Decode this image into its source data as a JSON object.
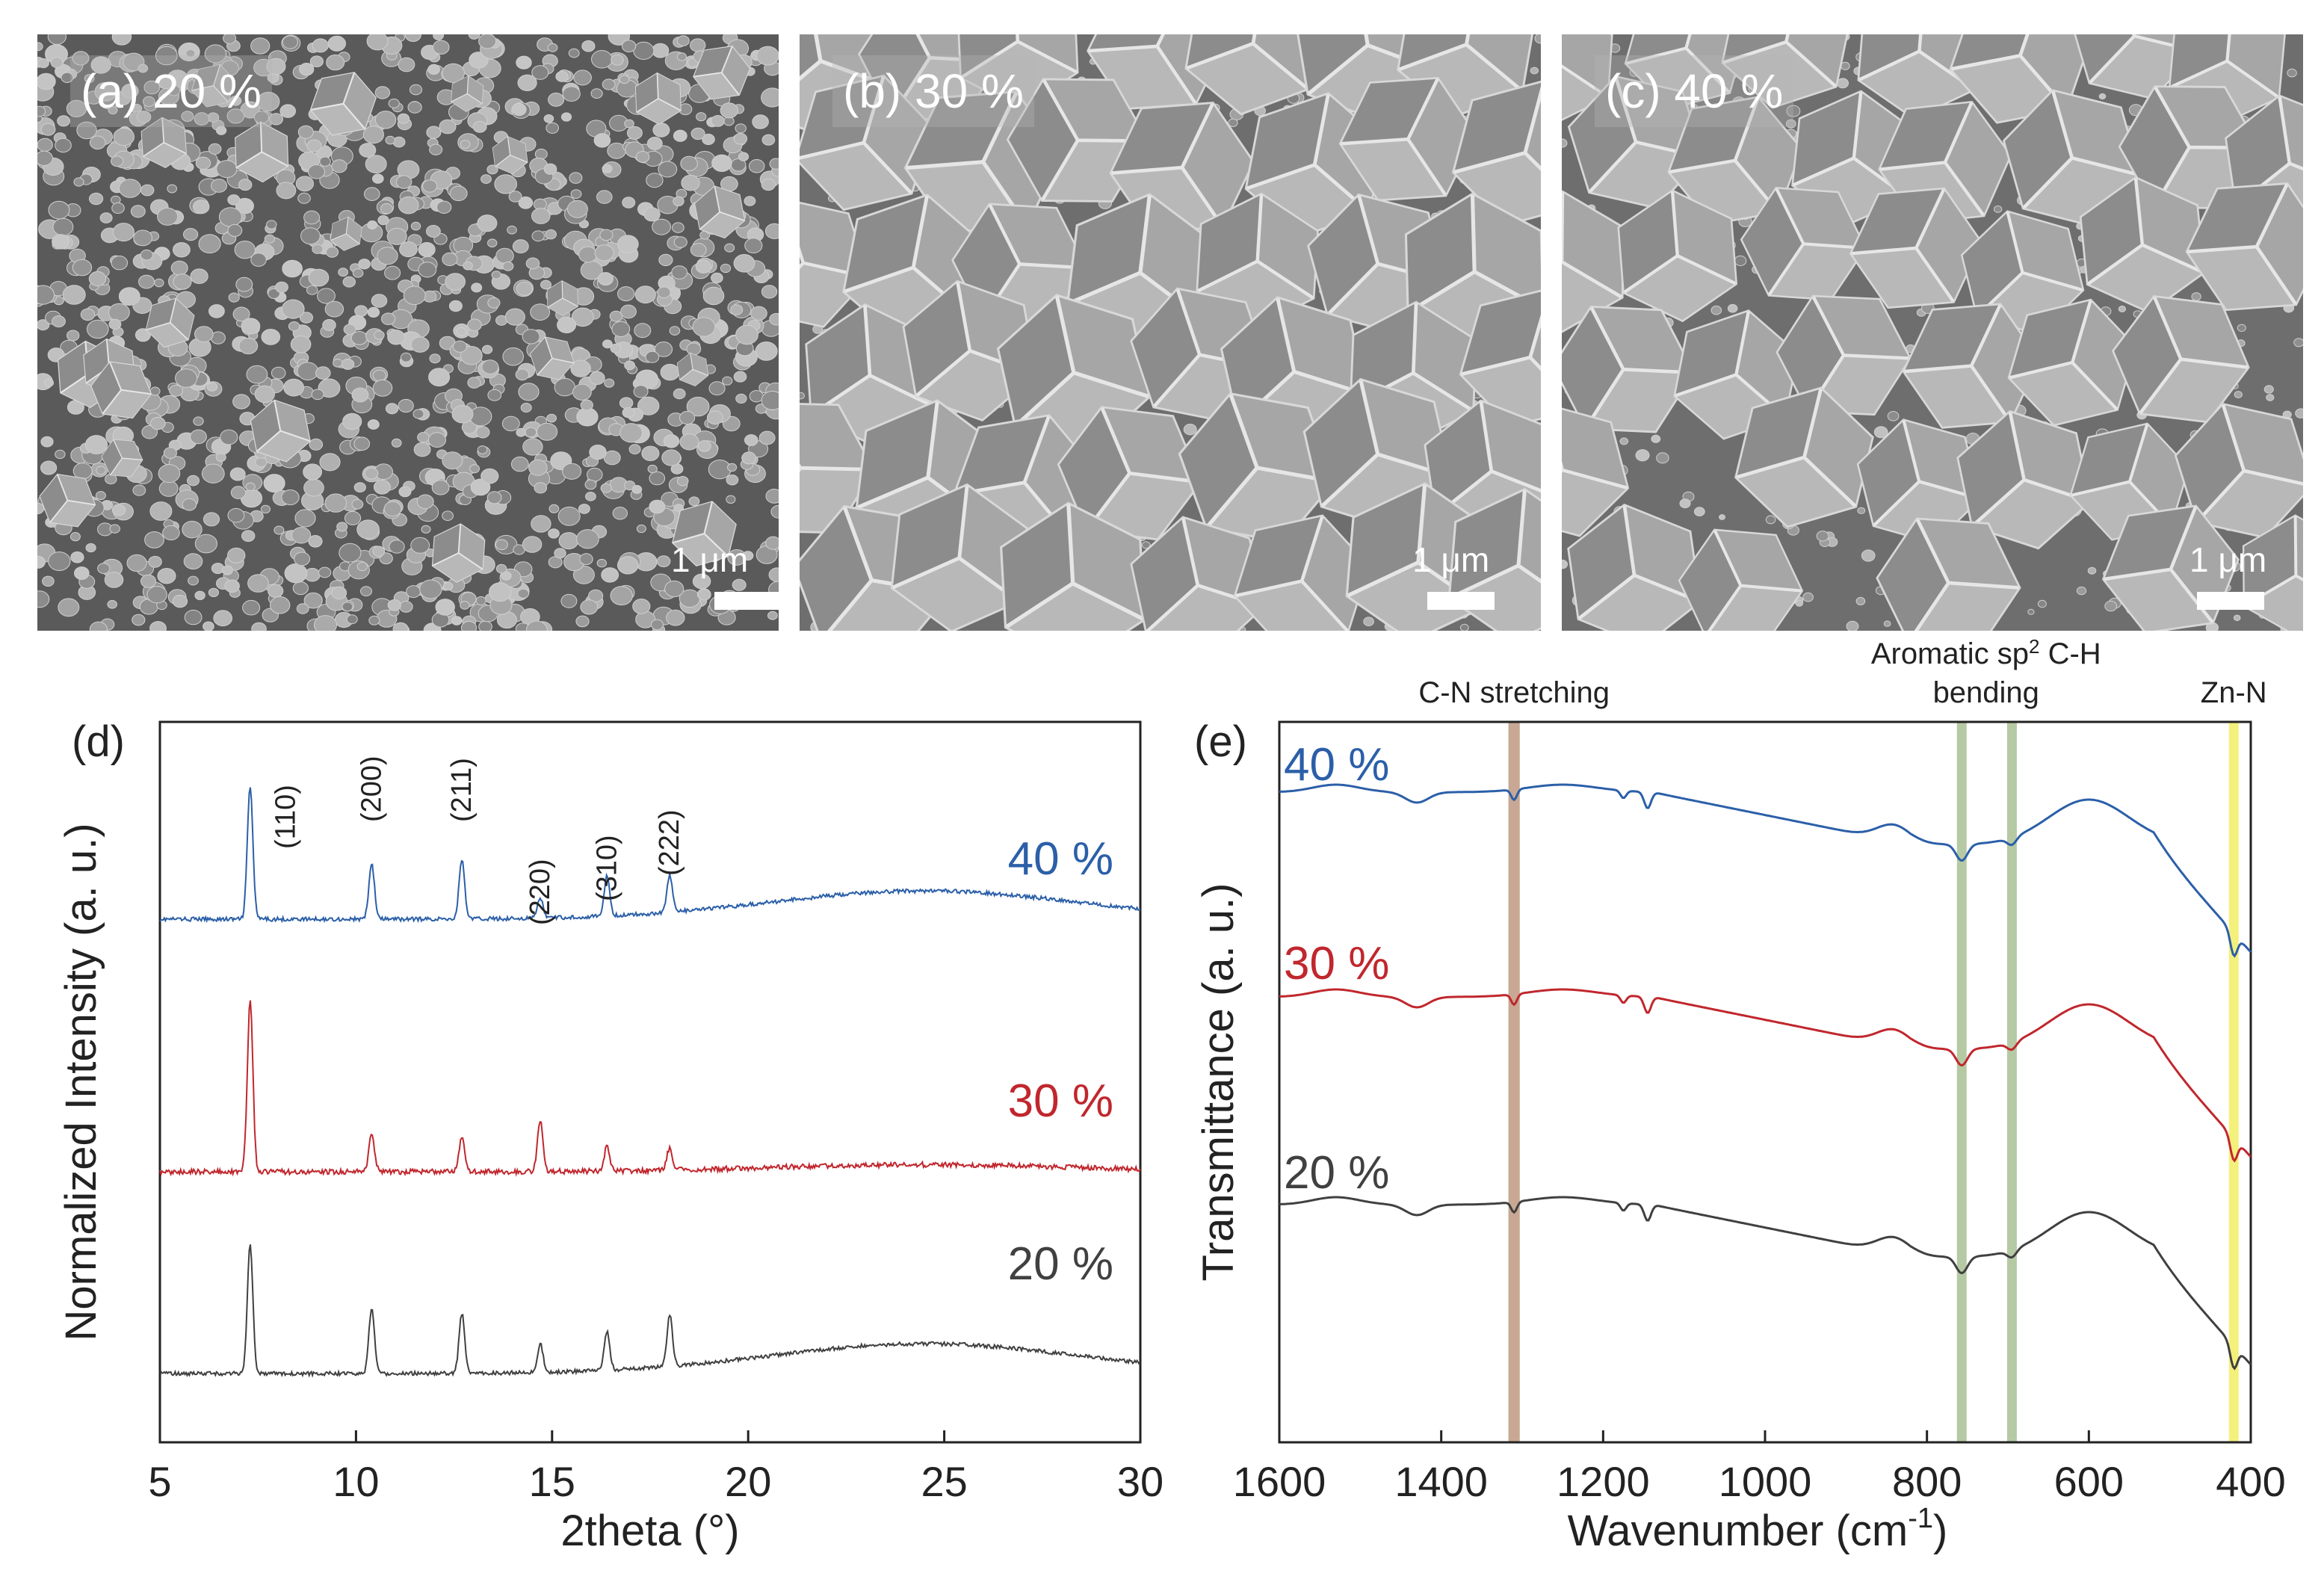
{
  "sem_panels": [
    {
      "label": "(a) 20 %",
      "scale": "1 μm",
      "density": "small"
    },
    {
      "label": "(b) 30 %",
      "scale": "1 μm",
      "density": "large"
    },
    {
      "label": "(c) 40 %",
      "scale": "1 μm",
      "density": "mixed"
    }
  ],
  "chart_data": [
    {
      "panel": "(d)",
      "type": "line",
      "xlabel": "2theta (°)",
      "ylabel": "Normalized Intensity (a. u.)",
      "xlim": [
        5,
        30
      ],
      "xticks": [
        5,
        10,
        15,
        20,
        25,
        30
      ],
      "series": [
        {
          "name": "40 %",
          "color": "#2b5fa8",
          "offset": 2,
          "peaks": [
            [
              7.3,
              1.0
            ],
            [
              10.4,
              0.42
            ],
            [
              12.7,
              0.45
            ],
            [
              14.7,
              0.15
            ],
            [
              16.4,
              0.3
            ],
            [
              18.0,
              0.28
            ]
          ]
        },
        {
          "name": "30 %",
          "color": "#c0272d",
          "offset": 1,
          "peaks": [
            [
              7.3,
              1.0
            ],
            [
              10.4,
              0.22
            ],
            [
              12.7,
              0.2
            ],
            [
              14.7,
              0.3
            ],
            [
              16.4,
              0.14
            ],
            [
              18.0,
              0.13
            ]
          ]
        },
        {
          "name": "20 %",
          "color": "#404040",
          "offset": 0,
          "peaks": [
            [
              7.3,
              1.0
            ],
            [
              10.4,
              0.52
            ],
            [
              12.7,
              0.47
            ],
            [
              14.7,
              0.22
            ],
            [
              16.4,
              0.3
            ],
            [
              18.0,
              0.4
            ]
          ]
        }
      ],
      "peak_labels": [
        {
          "x": 7.3,
          "text": "(110)"
        },
        {
          "x": 10.4,
          "text": "(200)"
        },
        {
          "x": 12.7,
          "text": "(211)"
        },
        {
          "x": 14.7,
          "text": "(220)"
        },
        {
          "x": 16.4,
          "text": "(310)"
        },
        {
          "x": 18.0,
          "text": "(222)"
        }
      ]
    },
    {
      "panel": "(e)",
      "type": "line",
      "xlabel": "Wavenumber (cm",
      "xlabel_sup": "-1",
      "xlabel_end": ")",
      "ylabel": "Transmittance (a. u.)",
      "xlim": [
        1600,
        400
      ],
      "xticks": [
        1600,
        1400,
        1200,
        1000,
        800,
        600,
        400
      ],
      "series": [
        {
          "name": "40 %",
          "color": "#2b5fa8",
          "offset": 2
        },
        {
          "name": "30 %",
          "color": "#c0272d",
          "offset": 1
        },
        {
          "name": "20 %",
          "color": "#404040",
          "offset": 0
        }
      ],
      "bands": [
        {
          "center": 1310,
          "width": 14,
          "color": "#c8a894"
        },
        {
          "center": 757,
          "width": 12,
          "color": "#b5c9a4"
        },
        {
          "center": 695,
          "width": 12,
          "color": "#b5c9a4"
        },
        {
          "center": 421,
          "width": 12,
          "color": "#f4f07c"
        }
      ],
      "annotations": [
        {
          "text": "C-N stretching",
          "x": 1310,
          "line": 1
        },
        {
          "text": "Aromatic sp",
          "sup": "2",
          "text_end": " C-H",
          "x": 727,
          "line": 0
        },
        {
          "text": "bending",
          "x": 727,
          "line": 1
        },
        {
          "text": "Zn-N",
          "x": 421,
          "line": 1
        }
      ]
    }
  ]
}
